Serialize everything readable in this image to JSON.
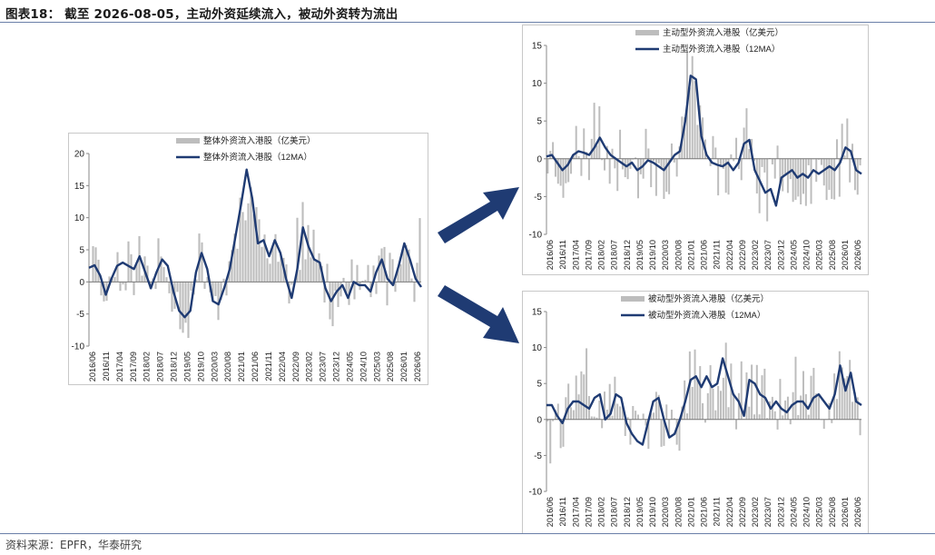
{
  "page": {
    "title": "图表18： 截至 2026-08-05，主动外资延续流入，被动外资转为流出",
    "source": "资料来源：EPFR，华泰研究"
  },
  "colors": {
    "bar": "#bdbdbd",
    "line": "#1f3b73",
    "arrow": "#1f3b73",
    "rule": "#6a7fa8"
  },
  "chart_data": [
    {
      "id": "total",
      "type": "bar",
      "legend": [
        "整体外资流入港股（亿美元）",
        "整体外资流入港股（12MA）"
      ],
      "ylim": [
        -10,
        20
      ],
      "yticks": [
        -10,
        -5,
        0,
        5,
        10,
        15,
        20
      ],
      "xtick_labels": [
        "2016/06",
        "2016/11",
        "2017/04",
        "2017/09",
        "2018/02",
        "2018/07",
        "2018/12",
        "2019/05",
        "2019/10",
        "2020/03",
        "2020/08",
        "2021/01",
        "2021/06",
        "2021/11",
        "2022/04",
        "2022/09",
        "2023/02",
        "2023/07",
        "2023/12",
        "2024/05",
        "2024/10",
        "2025/03",
        "2025/08",
        "2026/01",
        "2026/06"
      ],
      "ma_points": [
        [
          0,
          2.2
        ],
        [
          1,
          2.6
        ],
        [
          2,
          1.0
        ],
        [
          3,
          -2.0
        ],
        [
          4,
          0.5
        ],
        [
          5,
          2.5
        ],
        [
          6,
          3.0
        ],
        [
          7,
          2.5
        ],
        [
          8,
          2.0
        ],
        [
          9,
          4.0
        ],
        [
          10,
          1.5
        ],
        [
          11,
          -1.0
        ],
        [
          12,
          1.5
        ],
        [
          13,
          3.5
        ],
        [
          14,
          2.5
        ],
        [
          15,
          -1.5
        ],
        [
          16,
          -4.5
        ],
        [
          17,
          -5.5
        ],
        [
          18,
          -4.5
        ],
        [
          19,
          1.5
        ],
        [
          20,
          4.5
        ],
        [
          21,
          2.0
        ],
        [
          22,
          -3.0
        ],
        [
          23,
          -3.5
        ],
        [
          24,
          -1.0
        ],
        [
          25,
          2.0
        ],
        [
          26,
          7.0
        ],
        [
          27,
          12.0
        ],
        [
          28,
          17.5
        ],
        [
          29,
          13.0
        ],
        [
          30,
          6.0
        ],
        [
          31,
          6.5
        ],
        [
          32,
          4.0
        ],
        [
          33,
          6.5
        ],
        [
          34,
          4.5
        ],
        [
          35,
          0.5
        ],
        [
          36,
          -2.5
        ],
        [
          37,
          2.0
        ],
        [
          38,
          8.5
        ],
        [
          39,
          5.5
        ],
        [
          40,
          3.5
        ],
        [
          41,
          3.0
        ],
        [
          42,
          -1.0
        ],
        [
          43,
          -3.0
        ],
        [
          44,
          -1.5
        ],
        [
          45,
          -0.5
        ],
        [
          46,
          -2.5
        ],
        [
          47,
          0.0
        ],
        [
          48,
          -0.5
        ],
        [
          49,
          -0.5
        ],
        [
          50,
          -1.5
        ],
        [
          51,
          1.5
        ],
        [
          52,
          3.5
        ],
        [
          53,
          0.5
        ],
        [
          54,
          -0.5
        ],
        [
          55,
          2.5
        ],
        [
          56,
          6.0
        ],
        [
          57,
          3.5
        ],
        [
          58,
          0.5
        ],
        [
          59,
          -0.8
        ]
      ]
    },
    {
      "id": "active",
      "type": "bar",
      "legend": [
        "主动型外资流入港股（亿美元）",
        "主动型外资流入港股（12MA）"
      ],
      "ylim": [
        -10,
        15
      ],
      "yticks": [
        -10,
        -5,
        0,
        5,
        10,
        15
      ],
      "xtick_labels": [
        "2016/06",
        "2016/11",
        "2017/04",
        "2017/09",
        "2018/02",
        "2018/07",
        "2018/12",
        "2019/05",
        "2019/10",
        "2020/03",
        "2020/08",
        "2021/01",
        "2021/06",
        "2021/11",
        "2022/04",
        "2022/09",
        "2023/02",
        "2023/07",
        "2023/12",
        "2024/05",
        "2024/10",
        "2025/03",
        "2025/08",
        "2026/01",
        "2026/06"
      ],
      "ma_points": [
        [
          0,
          0.3
        ],
        [
          1,
          0.5
        ],
        [
          2,
          -0.5
        ],
        [
          3,
          -1.5
        ],
        [
          4,
          -0.8
        ],
        [
          5,
          0.5
        ],
        [
          6,
          1.0
        ],
        [
          7,
          0.8
        ],
        [
          8,
          0.5
        ],
        [
          9,
          1.5
        ],
        [
          10,
          2.8
        ],
        [
          11,
          1.5
        ],
        [
          12,
          0.5
        ],
        [
          13,
          0.0
        ],
        [
          14,
          -0.5
        ],
        [
          15,
          -1.0
        ],
        [
          16,
          -0.5
        ],
        [
          17,
          -1.5
        ],
        [
          18,
          -1.0
        ],
        [
          19,
          -0.2
        ],
        [
          20,
          -0.5
        ],
        [
          21,
          -1.0
        ],
        [
          22,
          -1.5
        ],
        [
          23,
          -0.5
        ],
        [
          24,
          0.5
        ],
        [
          25,
          1.0
        ],
        [
          26,
          5.0
        ],
        [
          27,
          11.0
        ],
        [
          28,
          10.5
        ],
        [
          29,
          3.0
        ],
        [
          30,
          0.5
        ],
        [
          31,
          -0.5
        ],
        [
          32,
          -0.8
        ],
        [
          33,
          -1.0
        ],
        [
          34,
          -0.5
        ],
        [
          35,
          -1.5
        ],
        [
          36,
          -0.5
        ],
        [
          37,
          2.0
        ],
        [
          38,
          2.5
        ],
        [
          39,
          -1.5
        ],
        [
          40,
          -3.0
        ],
        [
          41,
          -4.5
        ],
        [
          42,
          -4.0
        ],
        [
          43,
          -6.2
        ],
        [
          44,
          -2.5
        ],
        [
          45,
          -2.0
        ],
        [
          46,
          -1.5
        ],
        [
          47,
          -2.5
        ],
        [
          48,
          -2.0
        ],
        [
          49,
          -2.5
        ],
        [
          50,
          -1.5
        ],
        [
          51,
          -2.0
        ],
        [
          52,
          -1.5
        ],
        [
          53,
          -1.0
        ],
        [
          54,
          -1.5
        ],
        [
          55,
          -0.5
        ],
        [
          56,
          1.5
        ],
        [
          57,
          1.0
        ],
        [
          58,
          -1.5
        ],
        [
          59,
          -2.0
        ]
      ]
    },
    {
      "id": "passive",
      "type": "bar",
      "legend": [
        "被动型外资流入港股（亿美元）",
        "被动型外资流入港股（12MA）"
      ],
      "ylim": [
        -10,
        15
      ],
      "yticks": [
        -10,
        -5,
        0,
        5,
        10,
        15
      ],
      "xtick_labels": [
        "2016/06",
        "2016/11",
        "2017/04",
        "2017/09",
        "2018/02",
        "2018/07",
        "2018/12",
        "2019/05",
        "2019/10",
        "2020/03",
        "2020/08",
        "2021/01",
        "2021/06",
        "2021/11",
        "2022/04",
        "2022/09",
        "2023/02",
        "2023/07",
        "2023/12",
        "2024/05",
        "2024/10",
        "2025/03",
        "2025/08",
        "2026/01",
        "2026/06"
      ],
      "ma_points": [
        [
          0,
          2.0
        ],
        [
          1,
          2.0
        ],
        [
          2,
          0.5
        ],
        [
          3,
          -0.5
        ],
        [
          4,
          1.5
        ],
        [
          5,
          2.5
        ],
        [
          6,
          2.5
        ],
        [
          7,
          2.0
        ],
        [
          8,
          1.5
        ],
        [
          9,
          3.0
        ],
        [
          10,
          3.5
        ],
        [
          11,
          0.0
        ],
        [
          12,
          0.8
        ],
        [
          13,
          3.5
        ],
        [
          14,
          3.0
        ],
        [
          15,
          -0.5
        ],
        [
          16,
          -2.0
        ],
        [
          17,
          -3.0
        ],
        [
          18,
          -3.5
        ],
        [
          19,
          -0.5
        ],
        [
          20,
          2.5
        ],
        [
          21,
          3.0
        ],
        [
          22,
          0.0
        ],
        [
          23,
          -2.5
        ],
        [
          24,
          -2.0
        ],
        [
          25,
          0.0
        ],
        [
          26,
          2.5
        ],
        [
          27,
          5.5
        ],
        [
          28,
          6.0
        ],
        [
          29,
          4.5
        ],
        [
          30,
          6.0
        ],
        [
          31,
          4.5
        ],
        [
          32,
          5.0
        ],
        [
          33,
          8.5
        ],
        [
          34,
          6.0
        ],
        [
          35,
          3.5
        ],
        [
          36,
          2.5
        ],
        [
          37,
          0.5
        ],
        [
          38,
          5.5
        ],
        [
          39,
          5.0
        ],
        [
          40,
          3.5
        ],
        [
          41,
          3.0
        ],
        [
          42,
          1.5
        ],
        [
          43,
          2.5
        ],
        [
          44,
          1.5
        ],
        [
          45,
          1.0
        ],
        [
          46,
          2.0
        ],
        [
          47,
          2.5
        ],
        [
          48,
          2.5
        ],
        [
          49,
          1.5
        ],
        [
          50,
          3.0
        ],
        [
          51,
          3.5
        ],
        [
          52,
          2.5
        ],
        [
          53,
          1.5
        ],
        [
          54,
          3.5
        ],
        [
          55,
          7.5
        ],
        [
          56,
          4.0
        ],
        [
          57,
          6.5
        ],
        [
          58,
          2.5
        ],
        [
          59,
          2.0
        ]
      ]
    }
  ]
}
